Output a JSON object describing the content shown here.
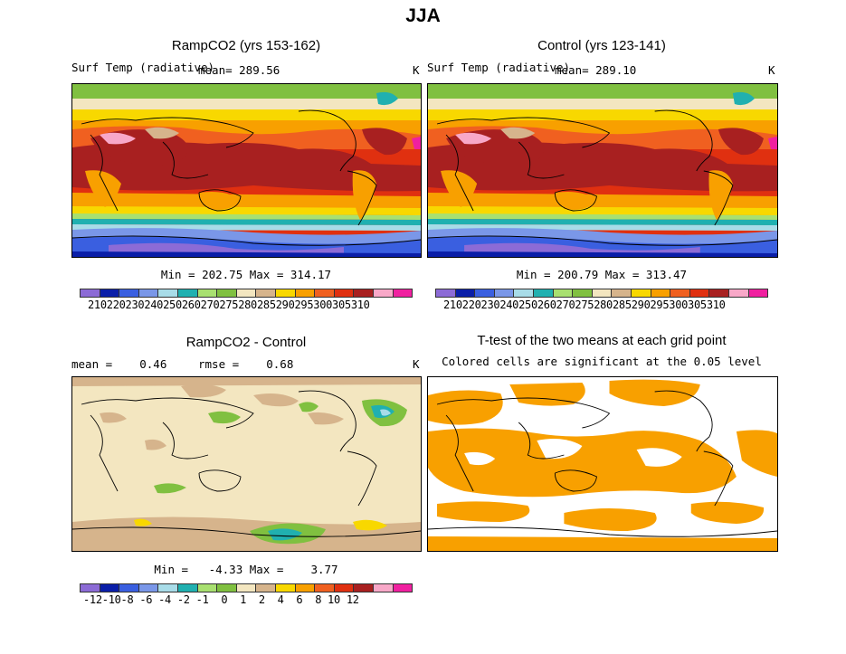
{
  "figure_title": "JJA",
  "panels": {
    "ramp": {
      "title": "RampCO2 (yrs 153-162)",
      "var_label": "Surf Temp (radiative)",
      "mean_label": "mean= 289.56",
      "units": "K",
      "minmax": "Min = 202.75 Max = 314.17"
    },
    "control": {
      "title": "Control (yrs 123-141)",
      "var_label": "Surf Temp (radiative)",
      "mean_label": "mean= 289.10",
      "units": "K",
      "minmax": "Min = 200.79 Max = 313.47"
    },
    "diff": {
      "title": "RampCO2 - Control",
      "mean_label": "mean =    0.46",
      "rmse_label": "rmse =    0.68",
      "units": "K",
      "minmax": "Min =   -4.33 Max =    3.77"
    },
    "ttest": {
      "title": "T-test of the two means at each grid point",
      "subtitle": "Colored cells are significant at the 0.05 level"
    }
  },
  "colorbars": {
    "temp": {
      "colors": [
        "#8c6bd6",
        "#0a1ea8",
        "#3a5fe0",
        "#7a97e8",
        "#a8dce8",
        "#20b0b0",
        "#a8e070",
        "#80c040",
        "#f3e6c0",
        "#d6b48c",
        "#f8d800",
        "#f8a000",
        "#f06020",
        "#e03010",
        "#a82020",
        "#f8a8c8",
        "#f020a0"
      ],
      "labels_text": "210220230240250260270275280285290295300305310"
    },
    "diff": {
      "colors": [
        "#8c6bd6",
        "#0a1ea8",
        "#3a5fe0",
        "#7a97e8",
        "#a8dce8",
        "#20b0b0",
        "#a8e070",
        "#80c040",
        "#f3e6c0",
        "#d6b48c",
        "#f8d800",
        "#f8a000",
        "#f06020",
        "#e03010",
        "#a82020",
        "#f8a8c8",
        "#f020a0"
      ],
      "labels_text": "-12-10-8 -6 -4 -2 -1  0  1  2  4  6  8 10 12"
    }
  }
}
